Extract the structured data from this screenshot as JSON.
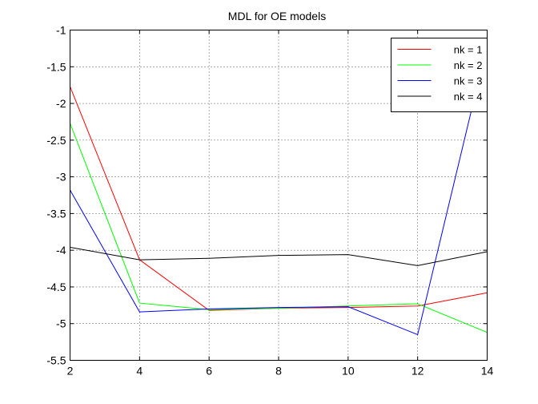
{
  "chart_data": {
    "type": "line",
    "title": "MDL for OE models",
    "xlabel": "",
    "ylabel": "",
    "xlim": [
      2,
      14
    ],
    "ylim": [
      -5.5,
      -1
    ],
    "xticks": [
      2,
      4,
      6,
      8,
      10,
      12,
      14
    ],
    "yticks": [
      -1,
      -1.5,
      -2,
      -2.5,
      -3,
      -3.5,
      -4,
      -4.5,
      -5,
      -5.5
    ],
    "xtick_labels": [
      "2",
      "4",
      "6",
      "8",
      "10",
      "12",
      "14"
    ],
    "ytick_labels": [
      "-1",
      "-1.5",
      "-2",
      "-2.5",
      "-3",
      "-3.5",
      "-4",
      "-4.5",
      "-5",
      "-5.5"
    ],
    "grid": true,
    "legend_position": "top-right",
    "x": [
      2,
      4,
      6,
      8,
      10,
      12,
      14
    ],
    "series": [
      {
        "name": "nk = 1",
        "color": "#ff0000",
        "values": [
          -1.77,
          -4.13,
          -4.82,
          -4.79,
          -4.78,
          -4.76,
          -4.58
        ]
      },
      {
        "name": "nk = 2",
        "color": "#00ff00",
        "values": [
          -2.27,
          -4.72,
          -4.81,
          -4.79,
          -4.76,
          -4.73,
          -5.12
        ]
      },
      {
        "name": "nk = 3",
        "color": "#0000ff",
        "values": [
          -3.18,
          -4.84,
          -4.8,
          -4.78,
          -4.77,
          -5.15,
          -1.2
        ]
      },
      {
        "name": "nk = 4",
        "color": "#000000",
        "values": [
          -3.96,
          -4.13,
          -4.11,
          -4.07,
          -4.06,
          -4.21,
          -4.02
        ]
      }
    ]
  }
}
